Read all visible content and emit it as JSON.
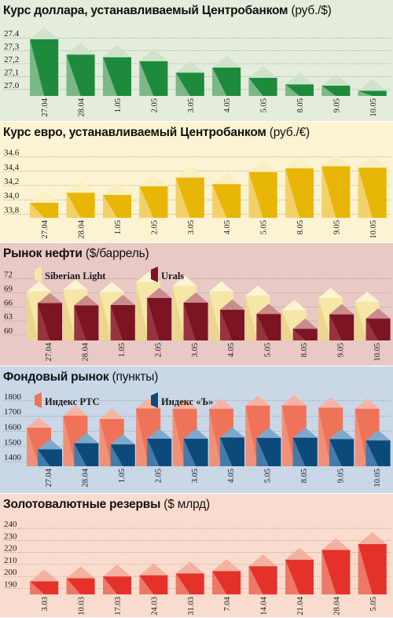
{
  "panels": [
    {
      "title": "Курс доллара, устанавливаемый Центробанком",
      "unit": "(руб./$)",
      "background": "#e4ecdc",
      "chart_data": {
        "type": "bar",
        "title": "Курс доллара, устанавливаемый Центробанком (руб./$)",
        "categories": [
          "27.04",
          "28.04",
          "1.05",
          "2.05",
          "3.05",
          "4.05",
          "5.05",
          "8.05",
          "9.05",
          "10.05"
        ],
        "series": [
          {
            "values": [
              27.39,
              27.27,
              27.25,
              27.22,
              27.13,
              27.17,
              27.09,
              27.04,
              27.03,
              26.99
            ],
            "front": "#1e8a3c",
            "top": "#cfe3cb",
            "side": "#8dbf94"
          }
        ],
        "yticks": [
          "27.4",
          "27,3",
          "27,2",
          "27,1",
          "27.0"
        ],
        "ytick_values": [
          27.4,
          27.3,
          27.2,
          27.1,
          27.0
        ],
        "ylim": [
          26.95,
          27.45
        ],
        "grid": true,
        "legend": []
      }
    },
    {
      "title": "Курс евро, устанавливаемый Центробанком",
      "unit": "(руб./€)",
      "background": "#fbf3d2",
      "chart_data": {
        "type": "bar",
        "title": "Курс евро, устанавливаемый Центробанком (руб./€)",
        "categories": [
          "27.04",
          "28.04",
          "1.05",
          "2.05",
          "3.05",
          "4.05",
          "5.05",
          "8.05",
          "9.05",
          "10.05"
        ],
        "series": [
          {
            "values": [
              33.96,
              34.1,
              34.07,
              34.19,
              34.31,
              34.22,
              34.39,
              34.44,
              34.47,
              34.45
            ],
            "front": "#e8b606",
            "top": "#fbeec0",
            "side": "#f3d67c"
          }
        ],
        "yticks": [
          "34.6",
          "34,4",
          "34,2",
          "34,0",
          "33,8"
        ],
        "ytick_values": [
          34.6,
          34.4,
          34.2,
          34.0,
          33.8
        ],
        "ylim": [
          33.75,
          34.65
        ],
        "grid": true,
        "legend": []
      }
    },
    {
      "title": "Рынок нефти",
      "unit": "($/баррель)",
      "background": "#e8c9c5",
      "chart_data": {
        "type": "bar",
        "title": "Рынок нефти ($/баррель)",
        "categories": [
          "27.04",
          "28.04",
          "1.05",
          "2.05",
          "3.05",
          "4.05",
          "5.05",
          "8.05",
          "9.05",
          "10.05"
        ],
        "series": [
          {
            "name": "Siberian Light",
            "values": [
              69.3,
              69.7,
              69.2,
              71.3,
              70.5,
              69.3,
              68.4,
              65.3,
              67.9,
              67.1
            ],
            "front": "#f6e7a8",
            "top": "#fcf4d2",
            "side": "#ead28a"
          },
          {
            "name": "Urals",
            "values": [
              66.8,
              66.3,
              66.4,
              67.9,
              66.9,
              65.4,
              64.5,
              61.3,
              64.4,
              63.5
            ],
            "front": "#7c1422",
            "top": "#c98b8b",
            "side": "#9e3a44"
          }
        ],
        "yticks": [
          "72",
          "69",
          "66",
          "63",
          "60"
        ],
        "ytick_values": [
          72,
          69,
          66,
          63,
          60
        ],
        "ylim": [
          58.8,
          73.3
        ],
        "grid": true,
        "legend": [
          "Siberian Light",
          "Urals"
        ]
      }
    },
    {
      "title": "Фондовый рынок",
      "unit": "(пункты)",
      "background": "#c9d7e7",
      "chart_data": {
        "type": "bar",
        "title": "Фондовый рынок (пункты)",
        "categories": [
          "27.04",
          "28.04",
          "1.05",
          "2.05",
          "3.05",
          "4.05",
          "5.05",
          "8.05",
          "9.05",
          "10.05"
        ],
        "series": [
          {
            "name": "Индекс РТС",
            "values": [
              1623,
              1703,
              1681,
              1750,
              1748,
              1747,
              1768,
              1770,
              1755,
              1747
            ],
            "front": "#ee7358",
            "top": "#f6b3a4",
            "side": "#f0957f"
          },
          {
            "name": "Индекс «Ъ»",
            "values": [
              1481,
              1522,
              1514,
              1551,
              1551,
              1559,
              1557,
              1558,
              1549,
              1540
            ],
            "front": "#0d4a7c",
            "top": "#7ea9cc",
            "side": "#4f84b3"
          }
        ],
        "yticks": [
          "1800",
          "1700",
          "1600",
          "1500",
          "1400"
        ],
        "ytick_values": [
          1800,
          1700,
          1600,
          1500,
          1400
        ],
        "ylim": [
          1370,
          1830
        ],
        "grid": true,
        "legend": [
          "Индекс РТС",
          "Индекс «Ъ»"
        ]
      }
    },
    {
      "title": "Золотовалютные резервы",
      "unit": "($ млрд)",
      "background": "#f9dccd",
      "chart_data": {
        "type": "bar",
        "title": "Золотовалютные резервы ($ млрд)",
        "categories": [
          "3.03",
          "10.03",
          "17.03",
          "24.03",
          "31.03",
          "7.04",
          "14.04",
          "21.04",
          "28.04",
          "5.05"
        ],
        "series": [
          {
            "values": [
              196,
              198.5,
              200,
              201,
              202.5,
              204.5,
              208.5,
              214,
              222,
              227
            ],
            "front": "#e4322a",
            "top": "#f4b19f",
            "side": "#ee8572"
          }
        ],
        "yticks": [
          "240",
          "230",
          "220",
          "210",
          "200",
          "190"
        ],
        "ytick_values": [
          240,
          230,
          220,
          210,
          200,
          190
        ],
        "ylim": [
          185,
          244
        ],
        "grid": true,
        "legend": []
      }
    }
  ]
}
